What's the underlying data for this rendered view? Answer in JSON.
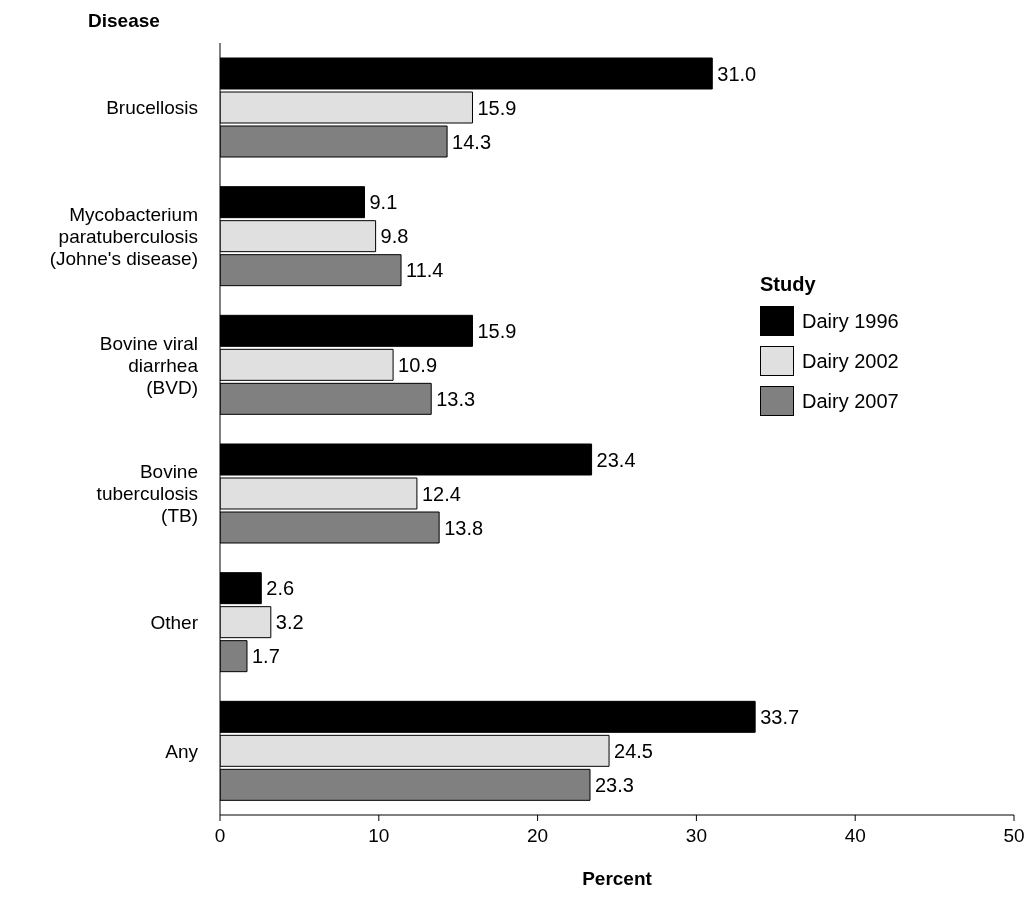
{
  "chart_data": {
    "type": "bar",
    "orientation": "horizontal",
    "ylabel": "Disease",
    "xlabel": "Percent",
    "legend_title": "Study",
    "categories": [
      "Brucellosis",
      "Mycobacterium\nparatuberculosis\n(Johne's disease)",
      "Bovine viral\ndiarrhea\n(BVD)",
      "Bovine\ntuberculosis\n(TB)",
      "Other",
      "Any"
    ],
    "series": [
      {
        "name": "Dairy 1996",
        "color": "#000000",
        "values": [
          31.0,
          9.1,
          15.9,
          23.4,
          2.6,
          33.7
        ],
        "value_labels": [
          "31.0",
          "9.1",
          "15.9",
          "23.4",
          "2.6",
          "33.7"
        ]
      },
      {
        "name": "Dairy 2002",
        "color": "#e0e0e0",
        "values": [
          15.9,
          9.8,
          10.9,
          12.4,
          3.2,
          24.5
        ],
        "value_labels": [
          "15.9",
          "9.8",
          "10.9",
          "12.4",
          "3.2",
          "24.5"
        ]
      },
      {
        "name": "Dairy 2007",
        "color": "#808080",
        "values": [
          14.3,
          11.4,
          13.3,
          13.8,
          1.7,
          23.3
        ],
        "value_labels": [
          "14.3",
          "11.4",
          "13.3",
          "13.8",
          "1.7",
          "23.3"
        ]
      }
    ],
    "xlim": [
      0,
      50
    ],
    "xticks": [
      0,
      10,
      20,
      30,
      40,
      50
    ],
    "grid": false,
    "legend": "right"
  }
}
